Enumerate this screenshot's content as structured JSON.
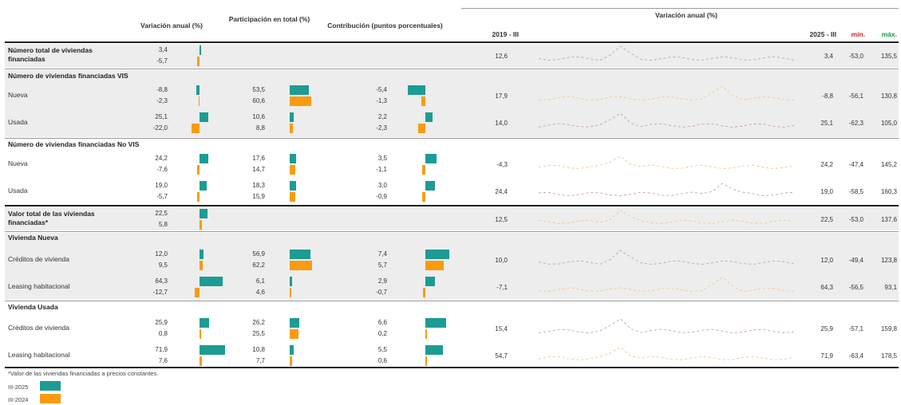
{
  "header": {
    "col_var": "Variación anual (%)",
    "col_part": "Participación en total (%)",
    "col_contrib": "Contribución (puntos porcentuales)",
    "col_spark": "Variación anual (%)",
    "start": "2019 - III",
    "end": "2025 - III",
    "min": "mín.",
    "max": "máx.",
    "min_color": "#d0202a",
    "max_color": "#1a9a3a"
  },
  "colors": {
    "current": "#1c9c93",
    "previous": "#f89b10"
  },
  "chart_data": {
    "type": "table",
    "series_names": [
      "III-2025",
      "III-2024"
    ],
    "rows": [
      {
        "label": "Número total de viviendas financiadas",
        "bold": true,
        "var": [
          "3,4",
          "-5,7"
        ],
        "var_v": [
          3.4,
          -5.7
        ],
        "part": null,
        "part_v": null,
        "contrib": null,
        "contrib_v": null,
        "start": "12,6",
        "end": "3,4",
        "min": "-53,0",
        "max": "135,5"
      },
      {
        "label": "Nueva",
        "bold": false,
        "var": [
          "-8,8",
          "-2,3"
        ],
        "var_v": [
          -8.8,
          -2.3
        ],
        "part": [
          "53,5",
          "60,6"
        ],
        "part_v": [
          53.5,
          60.6
        ],
        "contrib": [
          "-5,4",
          "-1,3"
        ],
        "contrib_v": [
          -5.4,
          -1.3
        ],
        "start": "17,9",
        "end": "-8,8",
        "min": "-56,1",
        "max": "130,8"
      },
      {
        "label": "Usada",
        "bold": false,
        "var": [
          "25,1",
          "-22,0"
        ],
        "var_v": [
          25.1,
          -22.0
        ],
        "part": [
          "10,6",
          "8,8"
        ],
        "part_v": [
          10.6,
          8.8
        ],
        "contrib": [
          "2,2",
          "-2,3"
        ],
        "contrib_v": [
          2.2,
          -2.3
        ],
        "start": "14,0",
        "end": "25,1",
        "min": "-62,3",
        "max": "105,0"
      },
      {
        "label": "Nueva",
        "bold": false,
        "var": [
          "24,2",
          "-7,6"
        ],
        "var_v": [
          24.2,
          -7.6
        ],
        "part": [
          "17,6",
          "14,7"
        ],
        "part_v": [
          17.6,
          14.7
        ],
        "contrib": [
          "3,5",
          "-1,1"
        ],
        "contrib_v": [
          3.5,
          -1.1
        ],
        "start": "-4,3",
        "end": "24,2",
        "min": "-47,4",
        "max": "145,2"
      },
      {
        "label": "Usada",
        "bold": false,
        "var": [
          "19,0",
          "-5,7"
        ],
        "var_v": [
          19.0,
          -5.7
        ],
        "part": [
          "18,3",
          "15,9"
        ],
        "part_v": [
          18.3,
          15.9
        ],
        "contrib": [
          "3,0",
          "-0,9"
        ],
        "contrib_v": [
          3.0,
          -0.9
        ],
        "start": "24,4",
        "end": "19,0",
        "min": "-58,5",
        "max": "160,3"
      },
      {
        "label": "Valor total de las viviendas financiadas*",
        "bold": true,
        "var": [
          "22,5",
          "5,8"
        ],
        "var_v": [
          22.5,
          5.8
        ],
        "part": null,
        "part_v": null,
        "contrib": null,
        "contrib_v": null,
        "start": "12,5",
        "end": "22,5",
        "min": "-53,0",
        "max": "137,6"
      },
      {
        "label": "Créditos de vivienda",
        "bold": false,
        "var": [
          "12,0",
          "9,5"
        ],
        "var_v": [
          12.0,
          9.5
        ],
        "part": [
          "56,9",
          "62,2"
        ],
        "part_v": [
          56.9,
          62.2
        ],
        "contrib": [
          "7,4",
          "5,7"
        ],
        "contrib_v": [
          7.4,
          5.7
        ],
        "start": "10,0",
        "end": "12,0",
        "min": "-49,4",
        "max": "123,8"
      },
      {
        "label": "Leasing habitacional",
        "bold": false,
        "var": [
          "64,3",
          "-12,7"
        ],
        "var_v": [
          64.3,
          -12.7
        ],
        "part": [
          "6,1",
          "4,6"
        ],
        "part_v": [
          6.1,
          4.6
        ],
        "contrib": [
          "2,9",
          "-0,7"
        ],
        "contrib_v": [
          2.9,
          -0.7
        ],
        "start": "-7,1",
        "end": "64,3",
        "min": "-56,5",
        "max": "93,1"
      },
      {
        "label": "Créditos de vivienda",
        "bold": false,
        "var": [
          "25,9",
          "0,8"
        ],
        "var_v": [
          25.9,
          0.8
        ],
        "part": [
          "26,2",
          "25,5"
        ],
        "part_v": [
          26.2,
          25.5
        ],
        "contrib": [
          "6,6",
          "0,2"
        ],
        "contrib_v": [
          6.6,
          0.2
        ],
        "start": "15,4",
        "end": "25,9",
        "min": "-57,1",
        "max": "159,8"
      },
      {
        "label": "Leasing habitacional",
        "bold": false,
        "var": [
          "71,9",
          "7,6"
        ],
        "var_v": [
          71.9,
          7.6
        ],
        "part": [
          "10,8",
          "7,7"
        ],
        "part_v": [
          10.8,
          7.7
        ],
        "contrib": [
          "5,5",
          "0,6"
        ],
        "contrib_v": [
          5.5,
          0.6
        ],
        "start": "54,7",
        "end": "71,9",
        "min": "-63,4",
        "max": "178,5"
      }
    ]
  },
  "sections": [
    "Número de viviendas financiadas VIS",
    "Número de viviendas financiadas No VIS",
    "Vivienda Nueva",
    "Vivienda Usada"
  ],
  "footnote": "*Valor de las viviendas financiadas a precios constantes.",
  "legend": [
    "III-2025",
    "III-2024"
  ]
}
